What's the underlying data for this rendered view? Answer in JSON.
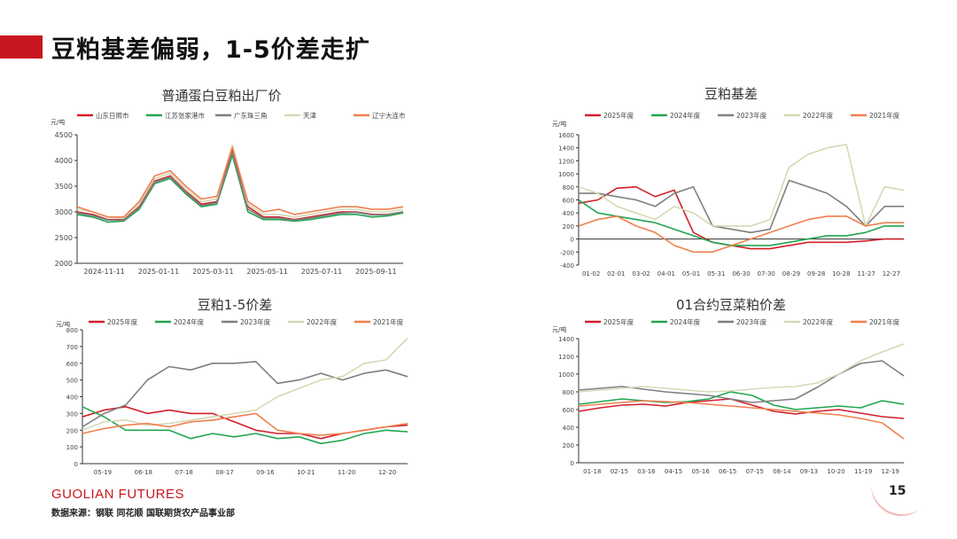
{
  "header": {
    "title": "豆粕基差偏弱，1-5价差走扩",
    "accent_color": "#c8161e"
  },
  "footer": {
    "brand": "GUOLIAN FUTURES",
    "source": "数据来源：钢联 同花顺 国联期货农产品事业部",
    "page": "15"
  },
  "charts": [
    {
      "title": "普通蛋白豆粕出厂价",
      "type": "line",
      "unit": "元/吨",
      "ylim": [
        2000,
        4500
      ],
      "yticks": [
        2000,
        2500,
        3000,
        3500,
        4000,
        4500
      ],
      "x_labels": [
        "2024-11-11",
        "2025-01-11",
        "2025-03-11",
        "2025-05-11",
        "2025-07-11",
        "2025-09-11"
      ],
      "series": [
        {
          "name": "山东日照市",
          "color": "#d0202a",
          "values": [
            3000,
            2950,
            2850,
            2850,
            3100,
            3600,
            3700,
            3400,
            3150,
            3200,
            4200,
            3100,
            2900,
            2900,
            2850,
            2900,
            2950,
            3000,
            3000,
            2950,
            2950,
            3000
          ]
        },
        {
          "name": "江苏张家港市",
          "color": "#22a650",
          "values": [
            2950,
            2900,
            2800,
            2820,
            3050,
            3550,
            3650,
            3350,
            3100,
            3150,
            4100,
            3000,
            2850,
            2850,
            2820,
            2850,
            2900,
            2950,
            2950,
            2900,
            2920,
            2980
          ]
        },
        {
          "name": "广东珠三角",
          "color": "#7f7f7f",
          "values": [
            2980,
            2930,
            2840,
            2840,
            3080,
            3580,
            3680,
            3380,
            3120,
            3180,
            4150,
            3050,
            2880,
            2880,
            2840,
            2880,
            2930,
            2980,
            2990,
            2940,
            2950,
            3000
          ]
        },
        {
          "name": "天津",
          "color": "#d5d9b5",
          "values": [
            3050,
            3000,
            2900,
            2880,
            3150,
            3650,
            3750,
            3450,
            3200,
            3250,
            4300,
            3150,
            2950,
            2950,
            2900,
            2950,
            3000,
            3050,
            3050,
            3000,
            3000,
            3050
          ]
        },
        {
          "name": "辽宁大连市",
          "color": "#f07f4f",
          "values": [
            3100,
            3000,
            2900,
            2900,
            3200,
            3700,
            3800,
            3500,
            3250,
            3300,
            4250,
            3200,
            3000,
            3050,
            2950,
            3000,
            3050,
            3100,
            3100,
            3050,
            3050,
            3100
          ]
        }
      ]
    },
    {
      "title": "豆粕基差",
      "type": "line",
      "unit": "元/吨",
      "ylim": [
        -400,
        1600
      ],
      "yticks": [
        -400,
        -200,
        0,
        200,
        400,
        600,
        800,
        1000,
        1200,
        1400,
        1600
      ],
      "x_labels": [
        "01-02",
        "02-01",
        "03-02",
        "04-01",
        "05-01",
        "05-31",
        "06-30",
        "07-30",
        "08-29",
        "09-28",
        "10-28",
        "11-27",
        "12-27"
      ],
      "series": [
        {
          "name": "2025年度",
          "color": "#d0202a",
          "values": [
            550,
            600,
            780,
            800,
            650,
            750,
            100,
            -50,
            -100,
            -150,
            -150,
            -100,
            -50,
            -50,
            -50,
            -30,
            0,
            0
          ]
        },
        {
          "name": "2024年度",
          "color": "#22a650",
          "values": [
            600,
            400,
            350,
            300,
            250,
            150,
            50,
            -50,
            -100,
            -100,
            -100,
            -50,
            0,
            50,
            50,
            100,
            200,
            200
          ]
        },
        {
          "name": "2023年度",
          "color": "#7f7f7f",
          "values": [
            700,
            700,
            650,
            600,
            500,
            700,
            800,
            200,
            150,
            100,
            150,
            900,
            800,
            700,
            500,
            200,
            500,
            500
          ]
        },
        {
          "name": "2022年度",
          "color": "#d5d9b5",
          "values": [
            800,
            700,
            500,
            400,
            300,
            500,
            400,
            200,
            200,
            200,
            300,
            1100,
            1300,
            1400,
            1450,
            200,
            800,
            750
          ]
        },
        {
          "name": "2021年度",
          "color": "#f07f4f",
          "values": [
            200,
            300,
            350,
            200,
            100,
            -100,
            -200,
            -200,
            -100,
            0,
            100,
            200,
            300,
            350,
            350,
            200,
            250,
            250
          ]
        }
      ]
    },
    {
      "title": "豆粕1-5价差",
      "type": "line",
      "unit": "元/吨",
      "ylim": [
        0,
        800
      ],
      "yticks": [
        0,
        100,
        200,
        300,
        400,
        500,
        600,
        700,
        800
      ],
      "x_labels": [
        "05-19",
        "06-18",
        "07-18",
        "08-17",
        "09-16",
        "10-21",
        "11-20",
        "12-20"
      ],
      "series": [
        {
          "name": "2025年度",
          "color": "#d0202a",
          "values": [
            280,
            320,
            340,
            300,
            320,
            300,
            300,
            250,
            200,
            180,
            180,
            150,
            180,
            200,
            220,
            230
          ]
        },
        {
          "name": "2024年度",
          "color": "#22a650",
          "values": [
            340,
            280,
            200,
            200,
            200,
            150,
            180,
            160,
            180,
            150,
            160,
            120,
            140,
            180,
            200,
            190
          ]
        },
        {
          "name": "2023年度",
          "color": "#7f7f7f",
          "values": [
            220,
            300,
            350,
            500,
            580,
            560,
            600,
            600,
            610,
            480,
            500,
            540,
            500,
            540,
            560,
            520
          ]
        },
        {
          "name": "2022年度",
          "color": "#d5d9b5",
          "values": [
            200,
            250,
            260,
            230,
            240,
            260,
            280,
            300,
            320,
            400,
            450,
            500,
            520,
            600,
            620,
            750
          ]
        },
        {
          "name": "2021年度",
          "color": "#f07f4f",
          "values": [
            180,
            210,
            230,
            240,
            220,
            250,
            260,
            280,
            300,
            200,
            180,
            170,
            180,
            200,
            220,
            240
          ]
        }
      ]
    },
    {
      "title": "01合约豆菜粕价差",
      "type": "line",
      "unit": "元/吨",
      "ylim": [
        0,
        1400
      ],
      "yticks": [
        0,
        200,
        400,
        600,
        800,
        1000,
        1200,
        1400
      ],
      "x_labels": [
        "01-18",
        "02-15",
        "03-16",
        "04-15",
        "05-16",
        "06-15",
        "07-15",
        "08-14",
        "09-13",
        "10-20",
        "11-19",
        "12-19"
      ],
      "series": [
        {
          "name": "2025年度",
          "color": "#d0202a",
          "values": [
            580,
            620,
            650,
            660,
            640,
            680,
            700,
            720,
            650,
            580,
            550,
            580,
            600,
            560,
            520,
            500
          ]
        },
        {
          "name": "2024年度",
          "color": "#22a650",
          "values": [
            660,
            690,
            720,
            700,
            680,
            690,
            720,
            800,
            760,
            650,
            600,
            620,
            640,
            620,
            700,
            660
          ]
        },
        {
          "name": "2023年度",
          "color": "#7f7f7f",
          "values": [
            820,
            840,
            860,
            830,
            800,
            780,
            760,
            720,
            680,
            700,
            720,
            850,
            1000,
            1120,
            1150,
            980
          ]
        },
        {
          "name": "2022年度",
          "color": "#d5d9b5",
          "values": [
            800,
            820,
            840,
            860,
            840,
            820,
            800,
            810,
            830,
            850,
            860,
            900,
            1000,
            1150,
            1250,
            1340
          ]
        },
        {
          "name": "2021年度",
          "color": "#f07f4f",
          "values": [
            640,
            660,
            680,
            700,
            690,
            680,
            660,
            640,
            620,
            600,
            580,
            560,
            540,
            500,
            450,
            270
          ]
        }
      ]
    }
  ]
}
